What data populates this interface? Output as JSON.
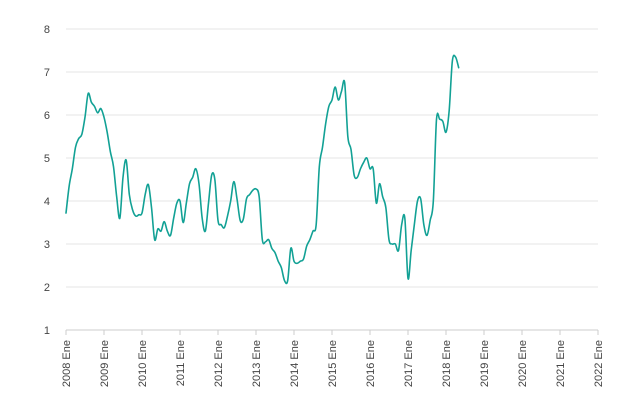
{
  "chart_data": {
    "type": "line",
    "title": "",
    "xlabel": "",
    "ylabel": "",
    "ylim": [
      1,
      8
    ],
    "xlim": [
      "2008-01",
      "2022-01"
    ],
    "yticks": [
      "1",
      "2",
      "3",
      "4",
      "5",
      "6",
      "7",
      "8"
    ],
    "xticks": [
      "2008 Ene",
      "2009 Ene",
      "2010 Ene",
      "2011 Ene",
      "2012 Ene",
      "2013 Ene",
      "2014 Ene",
      "2015 Ene",
      "2016 Ene",
      "2017 Ene",
      "2018 Ene",
      "2019 Ene",
      "2020 Ene",
      "2021 Ene",
      "2022 Ene"
    ],
    "grid": true,
    "legend": "none",
    "series": [
      {
        "color": "#12a195",
        "points": [
          [
            "2008-01",
            3.72
          ],
          [
            "2008-02",
            4.35
          ],
          [
            "2008-03",
            4.75
          ],
          [
            "2008-04",
            5.25
          ],
          [
            "2008-05",
            5.45
          ],
          [
            "2008-06",
            5.55
          ],
          [
            "2008-07",
            5.95
          ],
          [
            "2008-08",
            6.5
          ],
          [
            "2008-09",
            6.3
          ],
          [
            "2008-10",
            6.2
          ],
          [
            "2008-11",
            6.05
          ],
          [
            "2008-12",
            6.15
          ],
          [
            "2009-01",
            5.95
          ],
          [
            "2009-02",
            5.6
          ],
          [
            "2009-03",
            5.15
          ],
          [
            "2009-04",
            4.8
          ],
          [
            "2009-05",
            4.1
          ],
          [
            "2009-06",
            3.6
          ],
          [
            "2009-07",
            4.55
          ],
          [
            "2009-08",
            4.95
          ],
          [
            "2009-09",
            4.15
          ],
          [
            "2009-10",
            3.8
          ],
          [
            "2009-11",
            3.65
          ],
          [
            "2009-12",
            3.68
          ],
          [
            "2010-01",
            3.72
          ],
          [
            "2010-02",
            4.15
          ],
          [
            "2010-03",
            4.38
          ],
          [
            "2010-04",
            3.85
          ],
          [
            "2010-05",
            3.1
          ],
          [
            "2010-06",
            3.35
          ],
          [
            "2010-07",
            3.3
          ],
          [
            "2010-08",
            3.52
          ],
          [
            "2010-09",
            3.3
          ],
          [
            "2010-10",
            3.2
          ],
          [
            "2010-11",
            3.6
          ],
          [
            "2010-12",
            3.95
          ],
          [
            "2011-01",
            4.0
          ],
          [
            "2011-02",
            3.5
          ],
          [
            "2011-03",
            3.95
          ],
          [
            "2011-04",
            4.4
          ],
          [
            "2011-05",
            4.55
          ],
          [
            "2011-06",
            4.75
          ],
          [
            "2011-07",
            4.4
          ],
          [
            "2011-08",
            3.6
          ],
          [
            "2011-09",
            3.3
          ],
          [
            "2011-10",
            3.95
          ],
          [
            "2011-11",
            4.6
          ],
          [
            "2011-12",
            4.5
          ],
          [
            "2012-01",
            3.55
          ],
          [
            "2012-02",
            3.45
          ],
          [
            "2012-03",
            3.38
          ],
          [
            "2012-04",
            3.65
          ],
          [
            "2012-05",
            4.0
          ],
          [
            "2012-06",
            4.45
          ],
          [
            "2012-07",
            4.05
          ],
          [
            "2012-08",
            3.55
          ],
          [
            "2012-09",
            3.58
          ],
          [
            "2012-10",
            4.05
          ],
          [
            "2012-11",
            4.15
          ],
          [
            "2012-12",
            4.25
          ],
          [
            "2013-01",
            4.28
          ],
          [
            "2013-02",
            4.1
          ],
          [
            "2013-03",
            3.1
          ],
          [
            "2013-04",
            3.05
          ],
          [
            "2013-05",
            3.1
          ],
          [
            "2013-06",
            2.9
          ],
          [
            "2013-07",
            2.8
          ],
          [
            "2013-08",
            2.6
          ],
          [
            "2013-09",
            2.45
          ],
          [
            "2013-10",
            2.15
          ],
          [
            "2013-11",
            2.15
          ],
          [
            "2013-12",
            2.9
          ],
          [
            "2014-01",
            2.6
          ],
          [
            "2014-02",
            2.55
          ],
          [
            "2014-03",
            2.6
          ],
          [
            "2014-04",
            2.65
          ],
          [
            "2014-05",
            2.95
          ],
          [
            "2014-06",
            3.1
          ],
          [
            "2014-07",
            3.3
          ],
          [
            "2014-08",
            3.45
          ],
          [
            "2014-09",
            4.8
          ],
          [
            "2014-10",
            5.25
          ],
          [
            "2014-11",
            5.8
          ],
          [
            "2014-12",
            6.2
          ],
          [
            "2015-01",
            6.35
          ],
          [
            "2015-02",
            6.65
          ],
          [
            "2015-03",
            6.35
          ],
          [
            "2015-04",
            6.55
          ],
          [
            "2015-05",
            6.75
          ],
          [
            "2015-06",
            5.5
          ],
          [
            "2015-07",
            5.2
          ],
          [
            "2015-08",
            4.6
          ],
          [
            "2015-09",
            4.55
          ],
          [
            "2015-10",
            4.75
          ],
          [
            "2015-11",
            4.9
          ],
          [
            "2015-12",
            5.0
          ],
          [
            "2016-01",
            4.75
          ],
          [
            "2016-02",
            4.75
          ],
          [
            "2016-03",
            3.95
          ],
          [
            "2016-04",
            4.4
          ],
          [
            "2016-05",
            4.1
          ],
          [
            "2016-06",
            3.85
          ],
          [
            "2016-07",
            3.1
          ],
          [
            "2016-08",
            3.0
          ],
          [
            "2016-09",
            3.0
          ],
          [
            "2016-10",
            2.85
          ],
          [
            "2016-11",
            3.45
          ],
          [
            "2016-12",
            3.6
          ],
          [
            "2017-01",
            2.2
          ],
          [
            "2017-02",
            2.85
          ],
          [
            "2017-03",
            3.45
          ],
          [
            "2017-04",
            4.0
          ],
          [
            "2017-05",
            4.05
          ],
          [
            "2017-06",
            3.45
          ],
          [
            "2017-07",
            3.2
          ],
          [
            "2017-08",
            3.55
          ],
          [
            "2017-09",
            4.0
          ],
          [
            "2017-10",
            5.9
          ],
          [
            "2017-11",
            5.9
          ],
          [
            "2017-12",
            5.85
          ],
          [
            "2018-01",
            5.6
          ],
          [
            "2018-02",
            6.1
          ],
          [
            "2018-03",
            7.25
          ],
          [
            "2018-04",
            7.35
          ],
          [
            "2018-05",
            7.1
          ]
        ]
      }
    ]
  }
}
